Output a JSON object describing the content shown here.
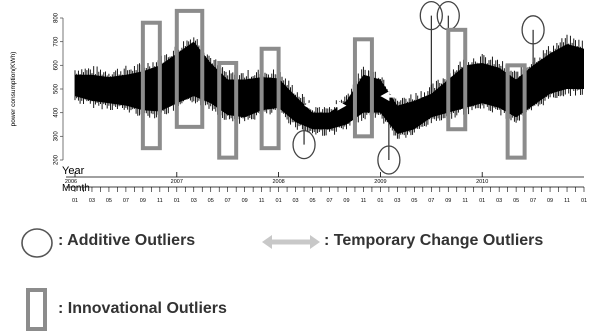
{
  "chart_data": {
    "type": "line",
    "ylabel": "power consumption(KWh)",
    "yticks": [
      200,
      300,
      400,
      500,
      600,
      700,
      800
    ],
    "ylim": [
      200,
      800
    ],
    "time_axis": {
      "year_label": "Year",
      "month_label": "Month",
      "start": "2006-01",
      "end": "2011-01",
      "year_ticks": [
        {
          "label": "2006",
          "date": "2006-01"
        },
        {
          "label": "2007",
          "date": "2007-01"
        },
        {
          "label": "2008",
          "date": "2008-01"
        },
        {
          "label": "2009",
          "date": "2009-01"
        },
        {
          "label": "2010",
          "date": "2010-01"
        }
      ],
      "month_ticks": [
        "01",
        "03",
        "05",
        "07",
        "09",
        "11",
        "01",
        "03",
        "05",
        "07",
        "09",
        "11",
        "01",
        "03",
        "05",
        "07",
        "09",
        "11",
        "01",
        "03",
        "05",
        "07",
        "09",
        "11",
        "01",
        "03",
        "05",
        "07",
        "09",
        "11",
        "01"
      ]
    },
    "series": [
      {
        "color": "#000000",
        "envelope": [
          {
            "date": "2006-01",
            "low": 470,
            "high": 560
          },
          {
            "date": "2006-03",
            "low": 450,
            "high": 560
          },
          {
            "date": "2006-05",
            "low": 440,
            "high": 550
          },
          {
            "date": "2006-07",
            "low": 430,
            "high": 560
          },
          {
            "date": "2006-09",
            "low": 410,
            "high": 575
          },
          {
            "date": "2006-11",
            "low": 405,
            "high": 600
          },
          {
            "date": "2007-01",
            "low": 440,
            "high": 650
          },
          {
            "date": "2007-03",
            "low": 470,
            "high": 700
          },
          {
            "date": "2007-05",
            "low": 440,
            "high": 610
          },
          {
            "date": "2007-07",
            "low": 390,
            "high": 540
          },
          {
            "date": "2007-09",
            "low": 380,
            "high": 540
          },
          {
            "date": "2007-11",
            "low": 410,
            "high": 550
          },
          {
            "date": "2008-01",
            "low": 420,
            "high": 545
          },
          {
            "date": "2008-03",
            "low": 360,
            "high": 470
          },
          {
            "date": "2008-05",
            "low": 330,
            "high": 400
          },
          {
            "date": "2008-07",
            "low": 330,
            "high": 400
          },
          {
            "date": "2008-09",
            "low": 350,
            "high": 450
          },
          {
            "date": "2008-11",
            "low": 400,
            "high": 560
          },
          {
            "date": "2009-01",
            "low": 400,
            "high": 540
          },
          {
            "date": "2009-03",
            "low": 310,
            "high": 430
          },
          {
            "date": "2009-05",
            "low": 330,
            "high": 450
          },
          {
            "date": "2009-07",
            "low": 380,
            "high": 480
          },
          {
            "date": "2009-09",
            "low": 400,
            "high": 540
          },
          {
            "date": "2009-11",
            "low": 420,
            "high": 600
          },
          {
            "date": "2010-01",
            "low": 440,
            "high": 610
          },
          {
            "date": "2010-03",
            "low": 420,
            "high": 590
          },
          {
            "date": "2010-05",
            "low": 380,
            "high": 540
          },
          {
            "date": "2010-07",
            "low": 430,
            "high": 600
          },
          {
            "date": "2010-09",
            "low": 480,
            "high": 650
          },
          {
            "date": "2010-11",
            "low": 500,
            "high": 690
          },
          {
            "date": "2011-01",
            "low": 500,
            "high": 670
          }
        ]
      }
    ],
    "annotations": {
      "additive_outliers": [
        {
          "date": "2008-04",
          "value": 265
        },
        {
          "date": "2009-02",
          "value": 200
        },
        {
          "date": "2009-07",
          "value": 810
        },
        {
          "date": "2009-09",
          "value": 810
        },
        {
          "date": "2010-07",
          "value": 750
        }
      ],
      "innovational_outliers": [
        {
          "start": "2006-09",
          "end": "2006-11",
          "low": 250,
          "high": 780
        },
        {
          "start": "2007-01",
          "end": "2007-04",
          "low": 340,
          "high": 830
        },
        {
          "start": "2007-06",
          "end": "2007-08",
          "low": 210,
          "high": 610
        },
        {
          "start": "2007-11",
          "end": "2008-01",
          "low": 250,
          "high": 670
        },
        {
          "start": "2008-10",
          "end": "2008-12",
          "low": 300,
          "high": 710
        },
        {
          "start": "2009-09",
          "end": "2009-11",
          "low": 330,
          "high": 750
        },
        {
          "start": "2010-04",
          "end": "2010-06",
          "low": 210,
          "high": 600
        }
      ],
      "temporary_change_outliers": [
        {
          "start": "2008-04",
          "end": "2008-09",
          "value": 430
        },
        {
          "start": "2009-01",
          "end": "2009-04",
          "value": 470
        }
      ]
    },
    "legend": [
      {
        "symbol": "circle",
        "label": ": Additive Outliers"
      },
      {
        "symbol": "double-arrow",
        "label": ": Temporary Change Outliers"
      },
      {
        "symbol": "rectangle",
        "label": ": Innovational Outliers"
      }
    ]
  }
}
